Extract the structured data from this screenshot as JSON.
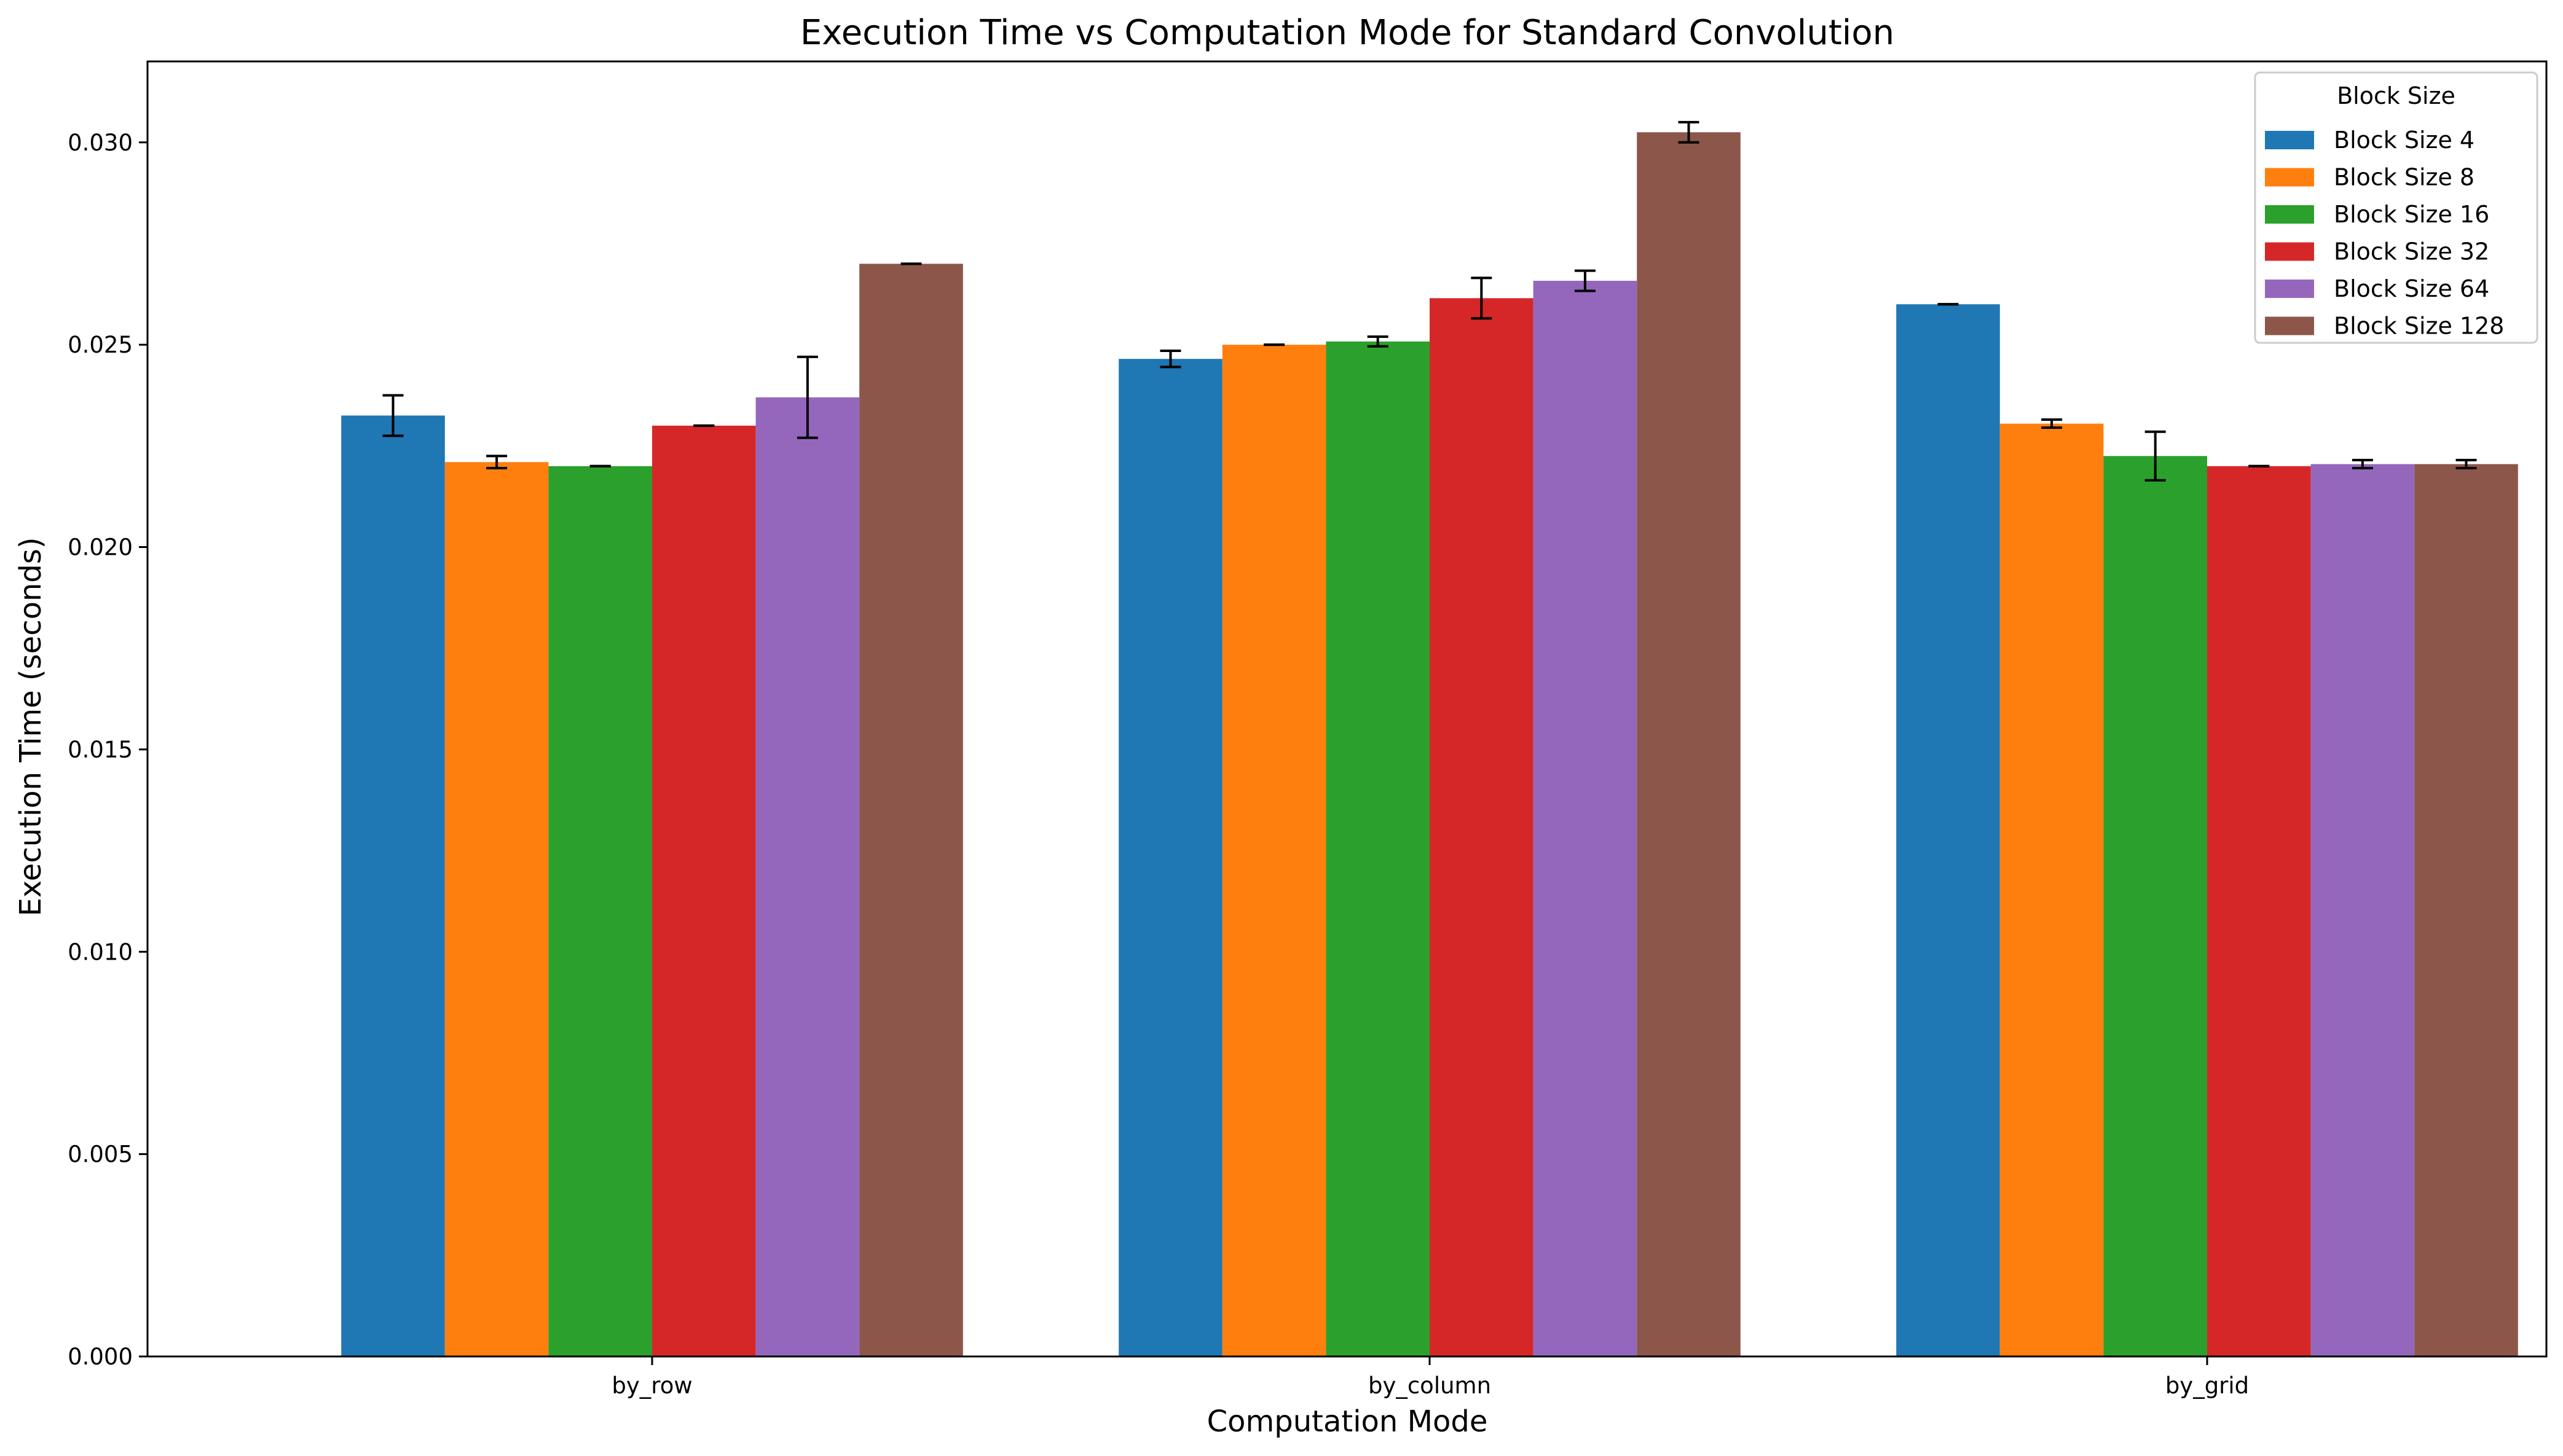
{
  "chart_data": {
    "type": "bar",
    "title": "Execution Time vs Computation Mode for Standard Convolution",
    "xlabel": "Computation Mode",
    "ylabel": "Execution Time (seconds)",
    "ylim": [
      0,
      0.032
    ],
    "yticks": [
      "0.000",
      "0.005",
      "0.010",
      "0.015",
      "0.020",
      "0.025",
      "0.030"
    ],
    "ytick_values": [
      0,
      0.005,
      0.01,
      0.015,
      0.02,
      0.025,
      0.03
    ],
    "categories": [
      "by_row",
      "by_column",
      "by_grid"
    ],
    "legend": {
      "title": "Block Size",
      "location": "top-right"
    },
    "series": [
      {
        "name": "Block Size 4",
        "color": "#1f77b4",
        "values": [
          0.02325,
          0.02465,
          0.026
        ],
        "errors": [
          0.0005,
          0.0002,
          0.0
        ]
      },
      {
        "name": "Block Size 8",
        "color": "#ff7f0e",
        "values": [
          0.0221,
          0.025,
          0.02305
        ],
        "errors": [
          0.00015,
          0.0,
          0.0001
        ]
      },
      {
        "name": "Block Size 16",
        "color": "#2ca02c",
        "values": [
          0.022,
          0.02508,
          0.02225
        ],
        "errors": [
          0.0,
          0.00012,
          0.0006
        ]
      },
      {
        "name": "Block Size 32",
        "color": "#d62728",
        "values": [
          0.023,
          0.02615,
          0.022
        ],
        "errors": [
          0.0,
          0.0005,
          0.0
        ]
      },
      {
        "name": "Block Size 64",
        "color": "#9467bd",
        "values": [
          0.0237,
          0.02658,
          0.02205
        ],
        "errors": [
          0.001,
          0.00025,
          0.0001
        ]
      },
      {
        "name": "Block Size 128",
        "color": "#8c564b",
        "values": [
          0.027,
          0.03025,
          0.02205
        ],
        "errors": [
          0.0,
          0.00025,
          0.0001
        ]
      }
    ]
  }
}
